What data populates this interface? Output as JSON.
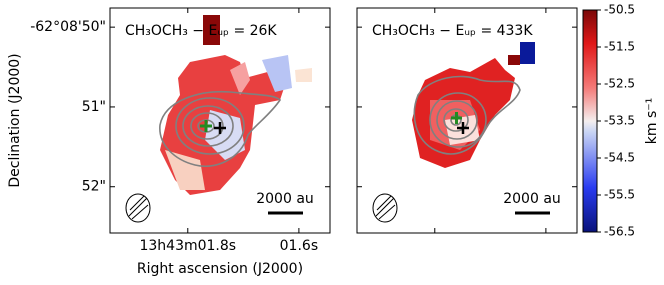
{
  "chart_data": [
    {
      "type": "image",
      "title": "CH₃OCH₃ − Eᵤₚ = 26K",
      "scalebar": "2000 au",
      "xlabel": "Right ascension (J2000)",
      "ylabel": "Declination (J2000)",
      "xlim": [
        1.94,
        1.544
      ],
      "ylim": [
        52.58,
        49.76
      ],
      "xticks": [
        {
          "value": 1.8,
          "label": "13h43m01.8s"
        },
        {
          "value": 1.6,
          "label": "01.6s"
        }
      ],
      "yticks": [
        {
          "value": 50,
          "label": "-62°08'50\""
        },
        {
          "value": 51,
          "label": "51\""
        },
        {
          "value": 52,
          "label": "52\""
        }
      ]
    },
    {
      "type": "image",
      "title": "CH₃OCH₃ − Eᵤₚ = 433K",
      "scalebar": "2000 au",
      "xlim": [
        1.94,
        1.544
      ],
      "ylim": [
        52.58,
        49.76
      ],
      "xticks": [
        1.8,
        1.6
      ],
      "yticks": [
        50,
        51,
        52
      ]
    },
    {
      "type": "colorbar",
      "label": "km s⁻¹",
      "ylim": [
        -56.5,
        -50.5
      ],
      "yticks": [
        -50.5,
        -51.5,
        -52.5,
        -53.5,
        -54.5,
        -55.5,
        -56.5
      ]
    }
  ]
}
